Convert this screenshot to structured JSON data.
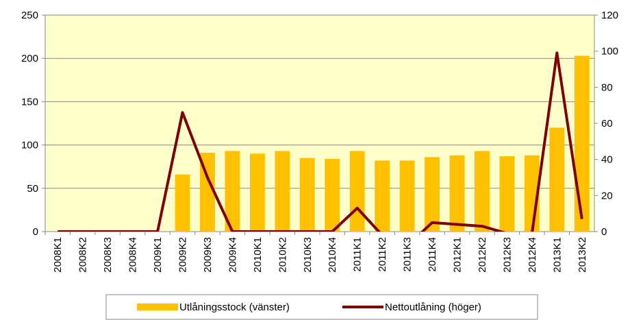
{
  "chart_data": {
    "type": "bar-line",
    "categories": [
      "2008K1",
      "2008K2",
      "2008K3",
      "2008K4",
      "2009K1",
      "2009K2",
      "2009K3",
      "2009K4",
      "2010K1",
      "2010K2",
      "2010K3",
      "2010K4",
      "2011K1",
      "2011K2",
      "2011K3",
      "2011K4",
      "2012K1",
      "2012K2",
      "2012K3",
      "2012K4",
      "2013K1",
      "2013K2"
    ],
    "series": [
      {
        "name": "Utlåningsstock (vänster)",
        "type": "bar",
        "color": "#ffc000",
        "values": [
          0,
          0,
          0,
          0,
          0,
          66,
          91,
          93,
          90,
          93,
          85,
          84,
          93,
          82,
          82,
          86,
          88,
          93,
          87,
          88,
          120,
          203
        ]
      },
      {
        "name": "Nettoutlåning (höger)",
        "type": "line",
        "axis": "y2",
        "color": "#7f0000",
        "values": [
          0,
          0,
          0,
          0,
          0,
          66,
          30,
          0,
          0,
          0,
          0,
          0,
          13,
          -2,
          -8,
          5,
          4,
          3,
          -1,
          -1,
          99,
          7
        ]
      }
    ],
    "ylim": [
      0,
      250
    ],
    "yticks": [
      0,
      50,
      100,
      150,
      200,
      250
    ],
    "y2lim": [
      0,
      120
    ],
    "y2ticks": [
      0,
      20,
      40,
      60,
      80,
      100,
      120
    ],
    "grid": true,
    "plot_background": "#ffffcc",
    "legend": "bottom"
  }
}
